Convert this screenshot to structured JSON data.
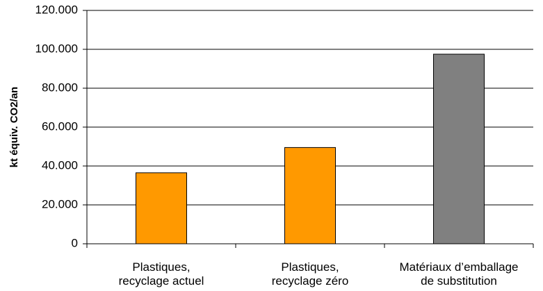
{
  "chart_data": {
    "type": "bar",
    "categories": [
      [
        "Plastiques,",
        "recyclage actuel"
      ],
      [
        "Plastiques,",
        "recyclage zéro"
      ],
      [
        "Matériaux d’emballage",
        "de substitution"
      ]
    ],
    "values": [
      36500,
      49500,
      97500
    ],
    "bar_colors": [
      "#ff9900",
      "#ff9900",
      "#808080"
    ],
    "ylabel": "kt équiv. CO2/an",
    "ylim": [
      0,
      120000
    ],
    "yticks": [
      0,
      20000,
      40000,
      60000,
      80000,
      100000,
      120000
    ],
    "ytick_labels": [
      "0",
      "20.000",
      "40.000",
      "60.000",
      "80.000",
      "100.000",
      "120.000"
    ],
    "grid": true,
    "legend": false
  }
}
